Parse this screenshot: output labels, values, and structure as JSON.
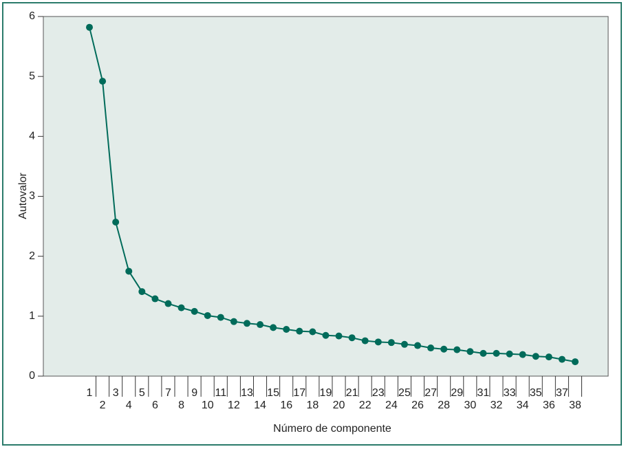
{
  "chart_data": {
    "type": "line",
    "y_label": "Autovalor",
    "x_label": "Número de componente",
    "categories": [
      "1",
      "2",
      "3",
      "4",
      "5",
      "6",
      "7",
      "8",
      "9",
      "10",
      "11",
      "12",
      "13",
      "14",
      "15",
      "16",
      "17",
      "18",
      "19",
      "20",
      "21",
      "22",
      "23",
      "24",
      "25",
      "26",
      "27",
      "28",
      "29",
      "30",
      "31",
      "32",
      "33",
      "34",
      "35",
      "36",
      "37",
      "38"
    ],
    "values": [
      5.82,
      4.92,
      2.57,
      1.75,
      1.41,
      1.29,
      1.21,
      1.14,
      1.08,
      1.01,
      0.98,
      0.91,
      0.88,
      0.86,
      0.81,
      0.78,
      0.75,
      0.74,
      0.68,
      0.67,
      0.64,
      0.59,
      0.57,
      0.56,
      0.53,
      0.51,
      0.47,
      0.45,
      0.44,
      0.41,
      0.38,
      0.38,
      0.37,
      0.36,
      0.33,
      0.32,
      0.28,
      0.24
    ],
    "color": "#006b5a",
    "ylim": [
      0,
      6
    ],
    "yticks": [
      0,
      1,
      2,
      3,
      4,
      5,
      6
    ]
  }
}
